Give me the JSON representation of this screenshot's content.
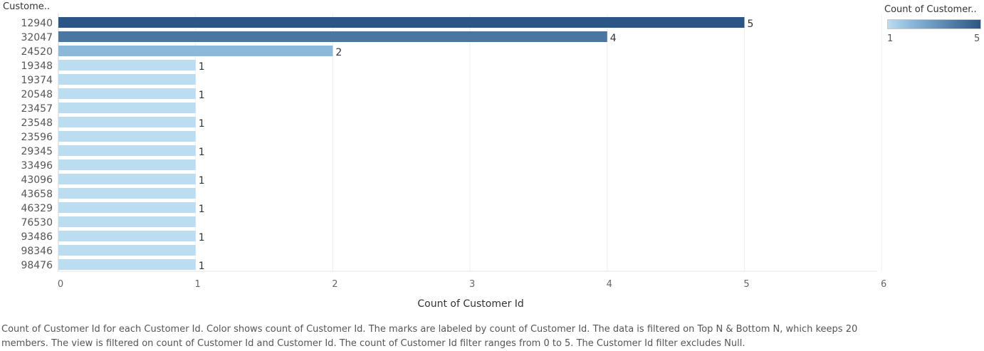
{
  "chart_data": {
    "type": "bar",
    "orientation": "horizontal",
    "row_header": "Custome..",
    "categories": [
      "12940",
      "32047",
      "24520",
      "19348",
      "19374",
      "20548",
      "23457",
      "23548",
      "23596",
      "29345",
      "33496",
      "43096",
      "43658",
      "46329",
      "76530",
      "93486",
      "98346",
      "98476"
    ],
    "values": [
      5,
      4,
      2,
      1,
      1,
      1,
      1,
      1,
      1,
      1,
      1,
      1,
      1,
      1,
      1,
      1,
      1,
      1
    ],
    "data_labels": [
      "5",
      "4",
      "2",
      "1",
      "",
      "1",
      "",
      "1",
      "",
      "1",
      "",
      "1",
      "",
      "1",
      "",
      "1",
      "",
      "1"
    ],
    "xlabel": "Count of Customer Id",
    "xlim": [
      0,
      6
    ],
    "xticks": [
      "0",
      "1",
      "2",
      "3",
      "4",
      "5",
      "6"
    ],
    "grid": true,
    "legend": {
      "title": "Count of Customer..",
      "min_label": "1",
      "max_label": "5",
      "placement": "top-right",
      "color_low": "#bcdcf0",
      "color_mid": "#8ab9dc",
      "color_high": "#2a5685"
    },
    "caption": "Count of Customer Id for each Customer Id.  Color shows count of Customer Id.  The marks are labeled by count of Customer Id. The data is filtered on Top N & Bottom N, which keeps 20 members. The view is filtered on count of Customer Id and Customer Id. The count of Customer Id filter ranges from 0 to 5. The Customer Id filter excludes Null."
  }
}
